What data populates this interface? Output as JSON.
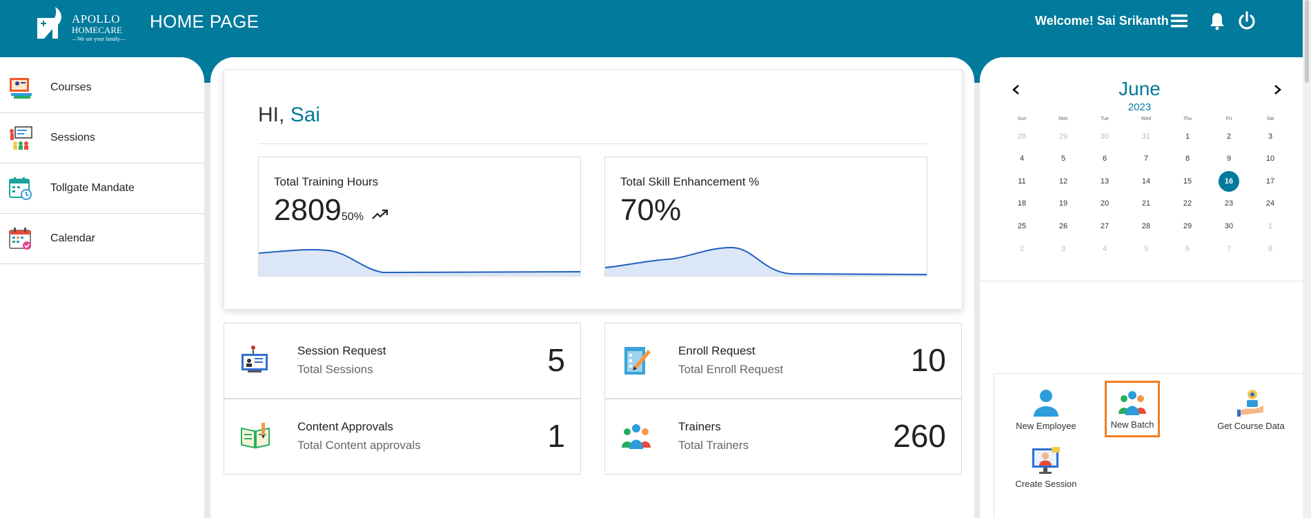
{
  "header": {
    "logo": {
      "line1": "APOLLO",
      "line2": "HOMECARE",
      "line3": "—We are your family—"
    },
    "title": "HOME PAGE",
    "welcome": "Welcome! Sai Srikanth",
    "icons": [
      "menu-icon",
      "bell-icon",
      "power-icon"
    ],
    "color": "#017a9c"
  },
  "sidebar": {
    "items": [
      {
        "label": "Courses",
        "icon": "courses-icon"
      },
      {
        "label": "Sessions",
        "icon": "sessions-icon"
      },
      {
        "label": "Tollgate Mandate",
        "icon": "tollgate-icon"
      },
      {
        "label": "Calendar",
        "icon": "calendar-icon"
      }
    ]
  },
  "main": {
    "greeting": "HI,",
    "user_name": "Sai",
    "stats": [
      {
        "title": "Total Training Hours",
        "value": "2809",
        "sub": "50%",
        "trend": "trend-up-icon"
      },
      {
        "title": "Total Skill Enhancement %",
        "value": "70%"
      }
    ],
    "cards": [
      {
        "title": "Session Request",
        "sub": "Total Sessions",
        "count": "5",
        "icon": "session-request-icon"
      },
      {
        "title": "Enroll Request",
        "sub": "Total Enroll Request",
        "count": "10",
        "icon": "enroll-request-icon"
      },
      {
        "title": "Content Approvals",
        "sub": "Total Content approvals",
        "count": "1",
        "icon": "content-approvals-icon"
      },
      {
        "title": "Trainers",
        "sub": "Total Trainers",
        "count": "260",
        "icon": "trainers-icon"
      }
    ]
  },
  "calendar": {
    "month": "June",
    "year": "2023",
    "weekdays": [
      "Sun",
      "Mon",
      "Tue",
      "Wed",
      "Thu",
      "Fri",
      "Sat"
    ],
    "weeks": [
      [
        "28",
        "29",
        "30",
        "31",
        "1",
        "2",
        "3"
      ],
      [
        "4",
        "5",
        "6",
        "7",
        "8",
        "9",
        "10"
      ],
      [
        "11",
        "12",
        "13",
        "14",
        "15",
        "16",
        "17"
      ],
      [
        "18",
        "19",
        "20",
        "21",
        "22",
        "23",
        "24"
      ],
      [
        "25",
        "26",
        "27",
        "28",
        "29",
        "30",
        "1"
      ],
      [
        "2",
        "3",
        "4",
        "5",
        "6",
        "7",
        "8"
      ]
    ],
    "today": "16"
  },
  "quick_actions": [
    {
      "label": "New Employee",
      "icon": "new-employee-icon"
    },
    {
      "label": "New Batch",
      "icon": "new-batch-icon",
      "selected": true
    },
    {
      "label": "Get Course Data",
      "icon": "get-course-data-icon"
    },
    {
      "label": "Create Session",
      "icon": "create-session-icon"
    }
  ]
}
